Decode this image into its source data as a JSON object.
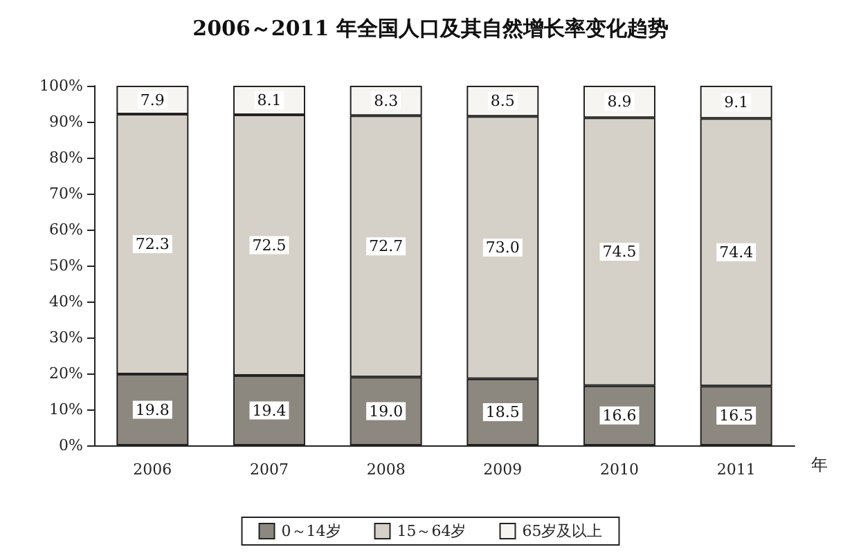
{
  "chart_data": {
    "type": "bar",
    "title": "2006～2011 年全国人口及其自然增长率变化趋势",
    "xlabel": "年",
    "categories": [
      "2006",
      "2007",
      "2008",
      "2009",
      "2010",
      "2011"
    ],
    "stacked": true,
    "legend": "bottom",
    "grid": false,
    "series": [
      {
        "name": "0～14岁",
        "color": "#8c877f",
        "values": [
          19.8,
          19.4,
          19.0,
          18.5,
          16.6,
          16.5
        ],
        "value_labels": [
          "19.8",
          "19.4",
          "19.0",
          "18.5",
          "16.6",
          "16.5"
        ]
      },
      {
        "name": "15～64岁",
        "color": "#d6d1c8",
        "values": [
          72.3,
          72.5,
          72.7,
          73.0,
          74.5,
          74.4
        ],
        "value_labels": [
          "72.3",
          "72.5",
          "72.7",
          "73.0",
          "74.5",
          "74.4"
        ]
      },
      {
        "name": "65岁及以上",
        "color": "#f7f5f1",
        "values": [
          7.9,
          8.1,
          8.3,
          8.5,
          8.9,
          9.1
        ],
        "value_labels": [
          "7.9",
          "8.1",
          "8.3",
          "8.5",
          "8.9",
          "9.1"
        ]
      }
    ],
    "ylim": [
      0,
      100
    ],
    "yticks": [
      {
        "value": 0,
        "label": "0%"
      },
      {
        "value": 10,
        "label": "10%"
      },
      {
        "value": 20,
        "label": "20%"
      },
      {
        "value": 30,
        "label": "30%"
      },
      {
        "value": 40,
        "label": "40%"
      },
      {
        "value": 50,
        "label": "50%"
      },
      {
        "value": 60,
        "label": "60%"
      },
      {
        "value": 70,
        "label": "70%"
      },
      {
        "value": 80,
        "label": "80%"
      },
      {
        "value": 90,
        "label": "90%"
      },
      {
        "value": 100,
        "label": "100%"
      }
    ]
  }
}
